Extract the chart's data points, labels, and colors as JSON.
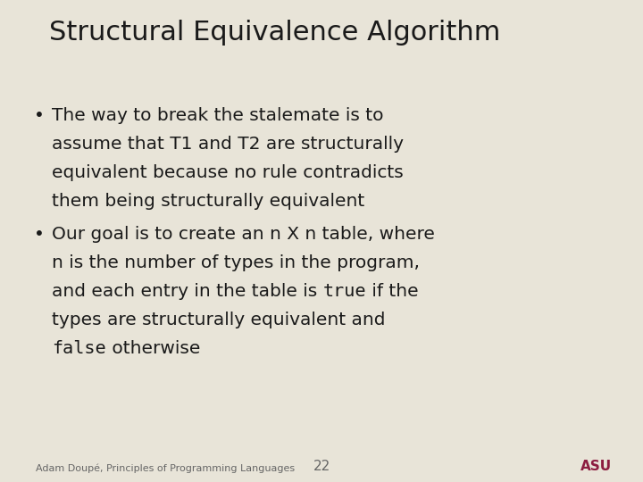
{
  "title": "Structural Equivalence Algorithm",
  "background_color": "#e8e4d8",
  "title_fontsize": 22,
  "title_color": "#1a1a1a",
  "body_fontsize": 14.5,
  "mono_fontsize": 14.5,
  "bullet_color": "#1a1a1a",
  "footer_text": "Adam Doupé, Principles of Programming Languages",
  "footer_page": "22",
  "footer_fontsize": 8,
  "footer_color": "#666666",
  "asu_color_maroon": "#8c1d40"
}
